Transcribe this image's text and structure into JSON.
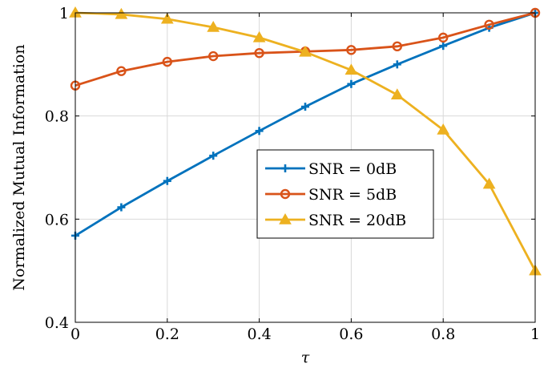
{
  "chart_data": {
    "type": "line",
    "title": "",
    "xlabel": "τ",
    "ylabel": "Normalized Mutual Information",
    "xlim": [
      0,
      1
    ],
    "ylim": [
      0.4,
      1
    ],
    "x_ticks": [
      0,
      0.2,
      0.4,
      0.6,
      0.8,
      1
    ],
    "x_tick_labels": [
      "0",
      "0.2",
      "0.4",
      "0.6",
      "0.8",
      "1"
    ],
    "y_ticks": [
      0.4,
      0.6,
      0.8,
      1
    ],
    "y_tick_labels": [
      "0.4",
      "0.6",
      "0.8",
      "1"
    ],
    "grid": true,
    "legend_position": "center-right",
    "x": [
      0,
      0.1,
      0.2,
      0.3,
      0.4,
      0.5,
      0.6,
      0.7,
      0.8,
      0.9,
      1
    ],
    "series": [
      {
        "name": "SNR = 0dB",
        "color": "#0072bd",
        "marker": "plus",
        "values": [
          0.568,
          0.623,
          0.674,
          0.723,
          0.771,
          0.818,
          0.862,
          0.9,
          0.936,
          0.971,
          1.0
        ]
      },
      {
        "name": "SNR = 5dB",
        "color": "#d95319",
        "marker": "circle",
        "values": [
          0.859,
          0.887,
          0.905,
          0.916,
          0.922,
          0.925,
          0.928,
          0.935,
          0.952,
          0.977,
          1.0
        ]
      },
      {
        "name": "SNR = 20dB",
        "color": "#edb120",
        "marker": "triangle",
        "values": [
          1.0,
          0.997,
          0.988,
          0.972,
          0.952,
          0.924,
          0.889,
          0.841,
          0.773,
          0.668,
          0.5
        ]
      }
    ]
  }
}
